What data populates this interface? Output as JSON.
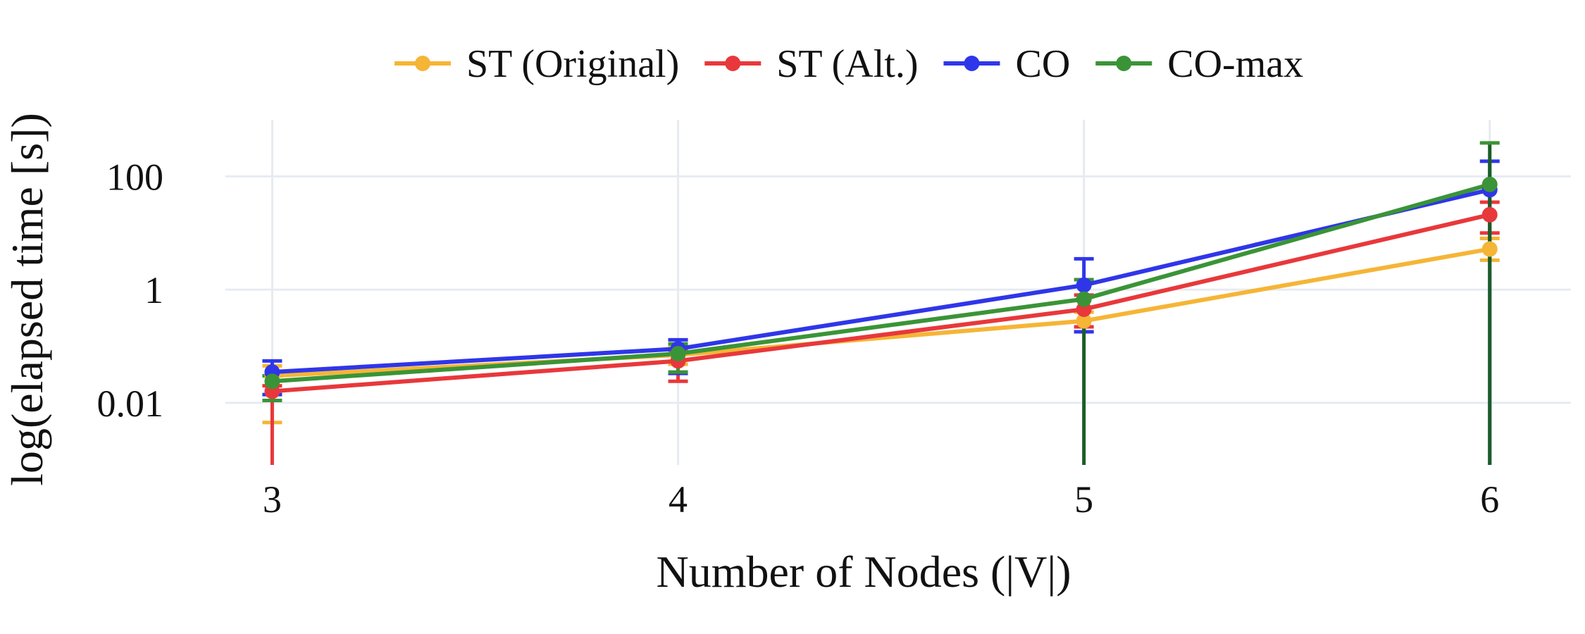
{
  "chart_data": {
    "type": "line",
    "title": "",
    "xlabel": "Number of Nodes (|V|)",
    "ylabel": "log(elapsed time [s])",
    "y_scale": "log",
    "ylim": [
      0.0008,
      1000
    ],
    "xlim": [
      2.85,
      6.2
    ],
    "grid": true,
    "legend_position": "top",
    "x": [
      3,
      4,
      5,
      6
    ],
    "x_tick_labels": [
      "3",
      "4",
      "5",
      "6"
    ],
    "y_tick_values": [
      0.01,
      1,
      100
    ],
    "y_tick_labels": [
      "0.01",
      "1",
      "100"
    ],
    "series": [
      {
        "name": "ST (Original)",
        "color": "#f5b536",
        "values": [
          0.03,
          0.07,
          0.28,
          5.2
        ],
        "err_upper": [
          0.045,
          0.1,
          0.4,
          8.0
        ],
        "err_lower": [
          0.0045,
          0.048,
          0.18,
          3.3
        ]
      },
      {
        "name": "ST (Alt.)",
        "color": "#e8383b",
        "values": [
          0.016,
          0.055,
          0.45,
          21
        ],
        "err_upper": [
          0.02,
          0.085,
          0.8,
          35
        ],
        "err_lower": [
          0.0008,
          0.024,
          0.22,
          10
        ]
      },
      {
        "name": "CO",
        "color": "#2f36e9",
        "values": [
          0.035,
          0.09,
          1.2,
          58
        ],
        "err_upper": [
          0.055,
          0.13,
          3.5,
          185
        ],
        "err_lower": [
          0.014,
          0.033,
          0.18,
          0.0008
        ]
      },
      {
        "name": "CO-max",
        "color": "#3a9437",
        "values": [
          0.024,
          0.074,
          0.68,
          72
        ],
        "err_upper": [
          0.03,
          0.11,
          1.5,
          390
        ],
        "err_lower": [
          0.011,
          0.035,
          0.0008,
          0.0008
        ]
      }
    ]
  }
}
